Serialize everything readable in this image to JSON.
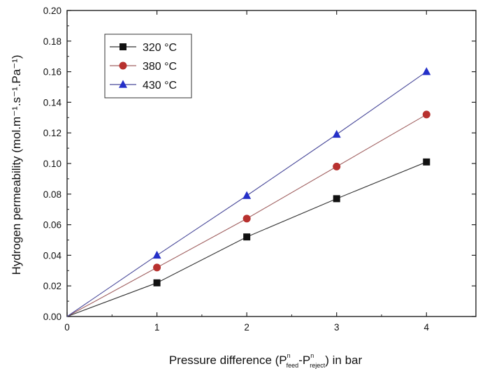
{
  "chart_data": {
    "type": "line",
    "title": "",
    "xlabel": {
      "prefix": "Pressure difference (P",
      "sup1": "n",
      "sub1": "feed",
      "mid": "-P",
      "sup2": "n",
      "sub2": "reject",
      "suffix": ") in bar"
    },
    "ylabel": "Hydrogen permeability (mol.m⁻¹.s⁻¹.Pa⁻¹)",
    "xlim": [
      0,
      4.55
    ],
    "ylim": [
      0,
      0.2
    ],
    "x_ticks": [
      0,
      1,
      2,
      3,
      4
    ],
    "x_tick_labels": [
      "0",
      "1",
      "2",
      "3",
      "4"
    ],
    "y_ticks": [
      0,
      0.02,
      0.04,
      0.06,
      0.08,
      0.1,
      0.12,
      0.14,
      0.16,
      0.18,
      0.2
    ],
    "y_tick_labels": [
      "0.00",
      "0.02",
      "0.04",
      "0.06",
      "0.08",
      "0.10",
      "0.12",
      "0.14",
      "0.16",
      "0.18",
      "0.20"
    ],
    "grid": false,
    "legend_position": "top-left",
    "x": [
      0,
      1,
      2,
      3,
      4
    ],
    "series": [
      {
        "name": "320 °C",
        "values": [
          0,
          0.022,
          0.052,
          0.077,
          0.101
        ],
        "color": "#111111",
        "line_color": "#333333",
        "marker": "square"
      },
      {
        "name": "380 °C",
        "values": [
          0,
          0.032,
          0.064,
          0.098,
          0.132
        ],
        "color": "#b8312f",
        "line_color": "#a06060",
        "marker": "circle"
      },
      {
        "name": "430 °C",
        "values": [
          0,
          0.04,
          0.079,
          0.119,
          0.16
        ],
        "color": "#2530c8",
        "line_color": "#4a4a9a",
        "marker": "triangle"
      }
    ]
  }
}
